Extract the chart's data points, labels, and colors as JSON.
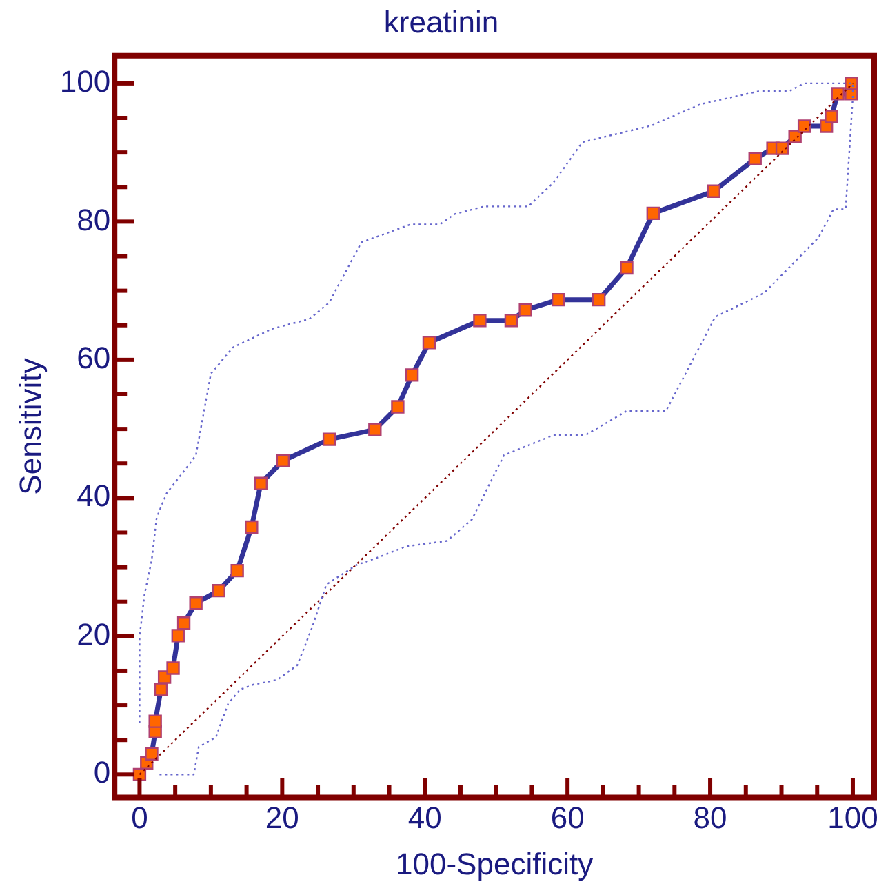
{
  "chart_data": {
    "type": "line",
    "title": "kreatinin",
    "xlabel": "100-Specificity",
    "ylabel": "Sensitivity",
    "xlim": [
      -3.5,
      103
    ],
    "ylim": [
      -3.3,
      104
    ],
    "xticks": [
      0,
      {
        "value": 5,
        "label": null
      },
      {
        "value": 10,
        "label": null
      },
      {
        "value": 15,
        "label": null
      },
      20,
      {
        "value": 25,
        "label": null
      },
      {
        "value": 30,
        "label": null
      },
      {
        "value": 35,
        "label": null
      },
      40,
      {
        "value": 45,
        "label": null
      },
      {
        "value": 50,
        "label": null
      },
      {
        "value": 55,
        "label": null
      },
      60,
      {
        "value": 65,
        "label": null
      },
      {
        "value": 70,
        "label": null
      },
      {
        "value": 75,
        "label": null
      },
      80,
      {
        "value": 85,
        "label": null
      },
      {
        "value": 90,
        "label": null
      },
      {
        "value": 95,
        "label": null
      },
      100
    ],
    "yticks": [
      0,
      {
        "value": 5,
        "label": null
      },
      {
        "value": 10,
        "label": null
      },
      {
        "value": 15,
        "label": null
      },
      20,
      {
        "value": 25,
        "label": null
      },
      {
        "value": 30,
        "label": null
      },
      {
        "value": 35,
        "label": null
      },
      40,
      {
        "value": 45,
        "label": null
      },
      {
        "value": 50,
        "label": null
      },
      {
        "value": 55,
        "label": null
      },
      60,
      {
        "value": 65,
        "label": null
      },
      {
        "value": 70,
        "label": null
      },
      {
        "value": 75,
        "label": null
      },
      80,
      {
        "value": 85,
        "label": null
      },
      {
        "value": 90,
        "label": null
      },
      {
        "value": 95,
        "label": null
      },
      100
    ],
    "grid": false,
    "legend": false,
    "line_style": "solid",
    "series": [
      {
        "color": "#6666cc",
        "line_style": "dotted",
        "marker": "none",
        "x": [
          0,
          0,
          0.7,
          1.7,
          2.4,
          3.8,
          6.9,
          7.9,
          10,
          13.1,
          18.6,
          23.8,
          26.6,
          31.1,
          38,
          42.1,
          44.2,
          48.3,
          54.5,
          58,
          62.1,
          71.8,
          78.7,
          87,
          91.1,
          93.2,
          98,
          100
        ],
        "values": [
          7.5,
          19.9,
          26.1,
          31,
          37.2,
          40.7,
          44.8,
          46.2,
          58,
          61.8,
          64.5,
          65.9,
          68.3,
          77,
          79.6,
          79.6,
          81.1,
          82.2,
          82.2,
          85.6,
          91.5,
          93.9,
          97,
          98.9,
          98.9,
          100,
          100,
          100
        ]
      },
      {
        "color": "#6666cc",
        "line_style": "dotted",
        "marker": "none",
        "x": [
          2.8,
          7.6,
          8.3,
          10.7,
          12.4,
          14.1,
          15.9,
          19.3,
          22.1,
          24.2,
          26.2,
          30.4,
          34.2,
          37.3,
          43.1,
          46.6,
          50.4,
          51.1,
          58,
          62.5,
          68.3,
          73.8,
          80.7,
          87.6,
          95.2,
          97.3,
          99,
          100,
          100
        ],
        "values": [
          0,
          0,
          4,
          5.4,
          10.2,
          12.3,
          13,
          13.7,
          15.8,
          21.3,
          27.5,
          30.3,
          31.7,
          33,
          33.8,
          36.9,
          44.8,
          46.2,
          49.1,
          49.1,
          52.6,
          52.6,
          66.2,
          69.7,
          77.7,
          81.8,
          81.8,
          98,
          100
        ]
      },
      {
        "color": "#800000",
        "line_style": "dotted",
        "x": [
          0,
          100
        ],
        "values": [
          0,
          100
        ]
      },
      {
        "color": "#333399",
        "marker": "square",
        "x": [
          0,
          1,
          1.7,
          2.2,
          2.2,
          3,
          3.5,
          4.7,
          5.4,
          6.2,
          7.9,
          11.1,
          13.7,
          15.7,
          17,
          20.1,
          26.6,
          33,
          36.2,
          38.2,
          40.6,
          47.7,
          52.1,
          54.1,
          58.7,
          64.4,
          68.3,
          72,
          80.5,
          86.3,
          88.8,
          90.1,
          91.9,
          93.2,
          96.3,
          97,
          97.9,
          99.8,
          99.8
        ],
        "values": [
          0,
          1.7,
          3,
          6.2,
          7.7,
          12.3,
          14.1,
          15.4,
          20.1,
          21.9,
          24.8,
          26.6,
          29.5,
          35.8,
          42.1,
          45.4,
          48.5,
          49.9,
          53.2,
          57.8,
          62.5,
          65.7,
          65.7,
          67.2,
          68.7,
          68.7,
          73.3,
          81.2,
          84.4,
          89.1,
          90.6,
          90.6,
          92.3,
          93.8,
          93.8,
          95.2,
          98.5,
          98.5,
          100
        ]
      }
    ]
  }
}
